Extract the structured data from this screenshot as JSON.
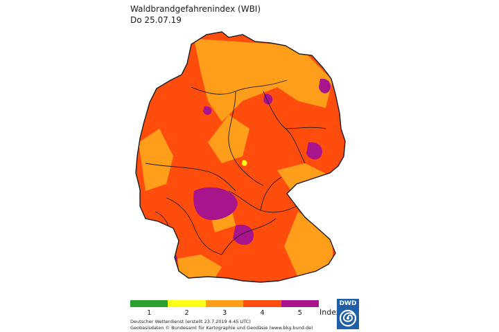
{
  "header": {
    "title": "Waldbrandgefahrenindex (WBI)",
    "date": "Do 25.07.19"
  },
  "legend": {
    "labels": [
      "1",
      "2",
      "3",
      "4",
      "5"
    ],
    "unit_label": "Index",
    "colors": [
      "#2ca02c",
      "#ffff1a",
      "#ff9e1a",
      "#ff4d0d",
      "#a7148c"
    ]
  },
  "map": {
    "dominant_color": "#ff4d0d",
    "secondary_color": "#ff9e1a",
    "highlight_color": "#a7148c",
    "border_color": "#1a1a1a"
  },
  "credits": {
    "line1": "Deutscher Wetterdienst (erstellt 23.7.2019 4:45 UTC)",
    "line2": "Geobasisdaten © Bundesamt für Kartographie und Geodäsie (www.bkg.bund.de)"
  },
  "logo": {
    "text": "DWD"
  }
}
